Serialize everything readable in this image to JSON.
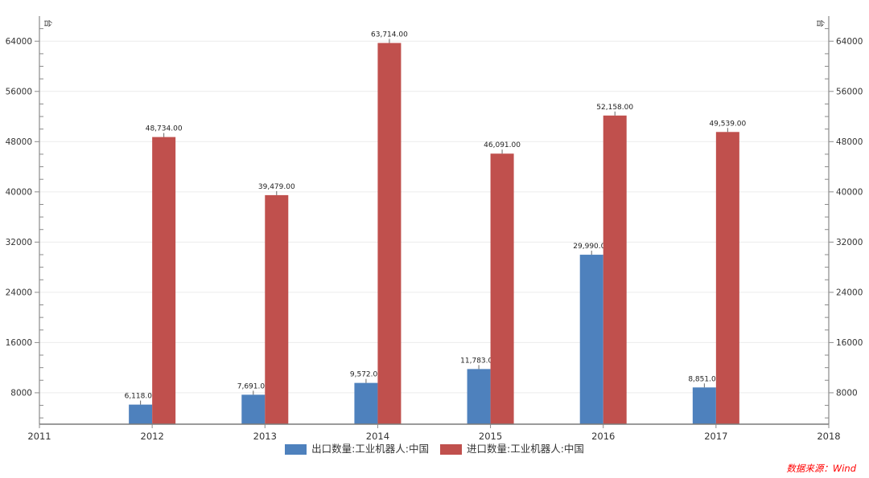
{
  "chart_data": {
    "type": "bar",
    "title": "",
    "unit_label": "台",
    "categories": [
      "2012",
      "2013",
      "2014",
      "2015",
      "2016",
      "2017"
    ],
    "series": [
      {
        "name": "出口数量:工业机器人:中国",
        "color": "#4e81bd",
        "values": [
          6118,
          7691,
          9572,
          11783,
          29990,
          8851
        ]
      },
      {
        "name": "进口数量:工业机器人:中国",
        "color": "#c0504d",
        "values": [
          48734,
          39479,
          63714,
          46091,
          52158,
          49539
        ]
      }
    ],
    "value_labels": [
      [
        "6,118.00",
        "7,691.00",
        "9,572.00",
        "11,783.00",
        "29,990.00",
        "8,851.00"
      ],
      [
        "48,734.00",
        "39,479.00",
        "63,714.00",
        "46,091.00",
        "52,158.00",
        "49,539.00"
      ]
    ],
    "x_axis": {
      "min": 2011,
      "max": 2018,
      "ticks": [
        "2011",
        "2012",
        "2013",
        "2014",
        "2015",
        "2016",
        "2017",
        "2018"
      ]
    },
    "y_axis": {
      "min": 3000,
      "max": 68000,
      "major_ticks": [
        8000,
        16000,
        24000,
        32000,
        40000,
        48000,
        56000,
        64000
      ],
      "minor_step": 2000,
      "dual": true
    },
    "grid": true,
    "legend_position": "bottom"
  },
  "legend": {
    "items": [
      {
        "label": "出口数量:工业机器人:中国",
        "color": "#4e81bd"
      },
      {
        "label": "进口数量:工业机器人:中国",
        "color": "#c0504d"
      }
    ]
  },
  "footer": {
    "source_label": "数据来源：Wind",
    "color": "#ff0000"
  }
}
